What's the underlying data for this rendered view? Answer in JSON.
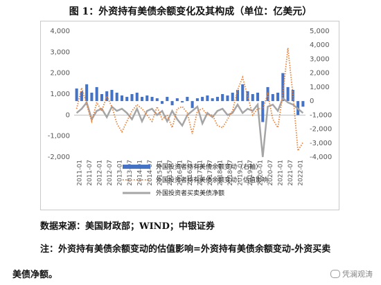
{
  "figure": {
    "title": "图 1：外资持有美债余额变化及其构成（单位：亿美元）",
    "source": "数据来源：美国财政部；WIND；中银证券",
    "note_line1": "注：外资持有美债余额变动的估值影响=外资持有美债余额变动-外资买卖",
    "note_line2": "美债净额。",
    "watermark": "凭澜观涛"
  },
  "chart_data": {
    "type": "bar+line",
    "left_axis": {
      "ylim": [
        -2000,
        4000
      ],
      "ticks": [
        "4,000",
        "3,000",
        "2,000",
        "1,000",
        "0",
        "-1,000",
        "-2,000"
      ]
    },
    "right_axis": {
      "ylim": [
        -4000,
        5000
      ],
      "ticks": [
        "5,000",
        "4,000",
        "3,000",
        "2,000",
        "1,000",
        "0",
        "-1,000",
        "-2,000",
        "-3,000",
        "-4,000"
      ]
    },
    "x_ticks": [
      "2011-01",
      "2011-07",
      "2012-01",
      "2012-07",
      "2013-01",
      "2013-07",
      "2014-01",
      "2014-07",
      "2015-01",
      "2015-07",
      "2016-01",
      "2016-07",
      "2017-01",
      "2017-07",
      "2018-01",
      "2018-07",
      "2019-01",
      "2019-07",
      "2020-01",
      "2020-07",
      "2021-01",
      "2021-07",
      "2022-01"
    ],
    "legend": [
      {
        "name": "外国投资者持有美债余额变动（右轴）",
        "color": "#4472c4",
        "style": "bar"
      },
      {
        "name": "外国投资者持有美债余额变动：估值影响",
        "color": "#ed7d31",
        "style": "dotted"
      },
      {
        "name": "外国投资者买卖美债净额",
        "color": "#a5a5a5",
        "style": "solid"
      }
    ],
    "months": [
      "2011-01",
      "2011-04",
      "2011-07",
      "2011-10",
      "2012-01",
      "2012-04",
      "2012-07",
      "2012-10",
      "2013-01",
      "2013-04",
      "2013-07",
      "2013-10",
      "2014-01",
      "2014-04",
      "2014-07",
      "2014-10",
      "2015-01",
      "2015-04",
      "2015-07",
      "2015-10",
      "2016-01",
      "2016-04",
      "2016-07",
      "2016-10",
      "2017-01",
      "2017-04",
      "2017-07",
      "2017-10",
      "2018-01",
      "2018-04",
      "2018-07",
      "2018-10",
      "2019-01",
      "2019-04",
      "2019-07",
      "2019-10",
      "2020-01",
      "2020-04",
      "2020-07",
      "2020-10",
      "2021-01",
      "2021-04",
      "2021-07",
      "2021-10",
      "2022-01",
      "2022-04"
    ],
    "holdings_change": [
      900,
      700,
      1200,
      600,
      1000,
      500,
      700,
      800,
      600,
      400,
      300,
      500,
      600,
      300,
      400,
      300,
      200,
      -200,
      300,
      -300,
      200,
      -100,
      300,
      -500,
      200,
      300,
      400,
      200,
      300,
      500,
      400,
      600,
      800,
      1200,
      700,
      500,
      600,
      -1500,
      1000,
      500,
      600,
      2000,
      1000,
      800,
      -1000,
      -400
    ],
    "valuation": [
      300,
      1300,
      500,
      -300,
      600,
      200,
      900,
      400,
      -400,
      -800,
      -300,
      200,
      500,
      300,
      0,
      -300,
      400,
      -200,
      0,
      -600,
      300,
      400,
      100,
      -900,
      200,
      300,
      0,
      0,
      -500,
      -600,
      -200,
      200,
      1200,
      1800,
      900,
      0,
      300,
      300,
      1000,
      -200,
      -600,
      1000,
      3200,
      1000,
      -1700,
      -1300
    ],
    "net_purchases": [
      100,
      300,
      600,
      -200,
      200,
      300,
      -100,
      400,
      200,
      300,
      100,
      -200,
      300,
      -300,
      200,
      300,
      0,
      200,
      -300,
      200,
      -200,
      -500,
      0,
      200,
      400,
      -400,
      100,
      -100,
      200,
      300,
      0,
      100,
      500,
      100,
      300,
      200,
      500,
      -2000,
      400,
      500,
      200,
      800,
      600,
      500,
      300,
      100
    ]
  }
}
